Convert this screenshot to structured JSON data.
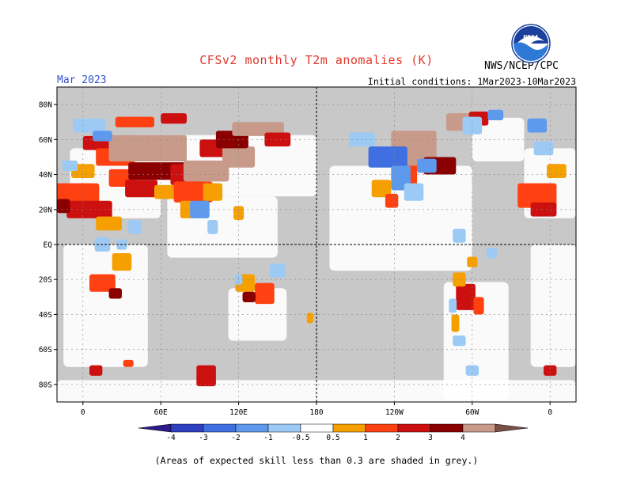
{
  "header": {
    "title": "CFSv2 monthly T2m anomalies (K)",
    "month": "Mar 2023",
    "initial_conditions": "Initial conditions: 1Mar2023-10Mar2023",
    "agency": "NWS/NCEP/CPC",
    "logo_text": "NOAA"
  },
  "footnote": "(Areas of expected skill less than 0.3 are shaded in grey.)",
  "colors": {
    "skill_grey": "#c8c8c8",
    "map_frame": "#000000",
    "title_red": "#e0382c",
    "month_blue": "#3355cc"
  },
  "chart_data": {
    "type": "heatmap",
    "title": "CFSv2 monthly T2m anomalies (K)",
    "projection": "equirectangular",
    "lon_range": [
      -20,
      380
    ],
    "lat_range": [
      -90,
      90
    ],
    "lat_ticks": [
      {
        "value": 80,
        "label": "80N"
      },
      {
        "value": 60,
        "label": "60N"
      },
      {
        "value": 40,
        "label": "40N"
      },
      {
        "value": 20,
        "label": "20N"
      },
      {
        "value": 0,
        "label": "EQ"
      },
      {
        "value": -20,
        "label": "20S"
      },
      {
        "value": -40,
        "label": "40S"
      },
      {
        "value": -60,
        "label": "60S"
      },
      {
        "value": -80,
        "label": "80S"
      }
    ],
    "lon_ticks": [
      {
        "value": 0,
        "label": "0"
      },
      {
        "value": 60,
        "label": "60E"
      },
      {
        "value": 120,
        "label": "120E"
      },
      {
        "value": 180,
        "label": "180"
      },
      {
        "value": 240,
        "label": "120W"
      },
      {
        "value": 300,
        "label": "60W"
      },
      {
        "value": 360,
        "label": "0"
      }
    ],
    "colorbar": {
      "boundaries": [
        -4,
        -3,
        -2,
        -1,
        -0.5,
        0.5,
        1,
        2,
        3,
        4
      ],
      "labels": [
        "-4",
        "-3",
        "-2",
        "-1",
        "-0.5",
        "0.5",
        "1",
        "2",
        "3",
        "4"
      ],
      "colors": [
        "#2a1b8a",
        "#2f3fc0",
        "#3f6fe0",
        "#5d9aee",
        "#9ccaf4",
        "#ffffff",
        "#f5a000",
        "#ff4010",
        "#cc1010",
        "#8a0000",
        "#c89a8a",
        "#7a5048"
      ]
    },
    "grid": "dashed",
    "anomaly_regions": [
      {
        "lon": 10,
        "lat": 58,
        "w": 20,
        "h": 8,
        "level": 3
      },
      {
        "lon": 25,
        "lat": 50,
        "w": 30,
        "h": 10,
        "level": 2
      },
      {
        "lon": 0,
        "lat": 42,
        "w": 18,
        "h": 8,
        "level": 1
      },
      {
        "lon": -10,
        "lat": 28,
        "w": 45,
        "h": 14,
        "level": 2
      },
      {
        "lon": 5,
        "lat": 20,
        "w": 35,
        "h": 10,
        "level": 3
      },
      {
        "lon": -15,
        "lat": 22,
        "w": 10,
        "h": 8,
        "level": 4
      },
      {
        "lon": 20,
        "lat": 12,
        "w": 20,
        "h": 8,
        "level": 1
      },
      {
        "lon": 30,
        "lat": 38,
        "w": 20,
        "h": 10,
        "level": 2
      },
      {
        "lon": 50,
        "lat": 55,
        "w": 60,
        "h": 15,
        "level": 5
      },
      {
        "lon": 60,
        "lat": 42,
        "w": 50,
        "h": 10,
        "level": 4
      },
      {
        "lon": 45,
        "lat": 32,
        "w": 25,
        "h": 10,
        "level": 3
      },
      {
        "lon": 65,
        "lat": 30,
        "w": 20,
        "h": 8,
        "level": 1
      },
      {
        "lon": 80,
        "lat": 40,
        "w": 25,
        "h": 12,
        "level": 3
      },
      {
        "lon": 85,
        "lat": 30,
        "w": 30,
        "h": 12,
        "level": 2
      },
      {
        "lon": 95,
        "lat": 42,
        "w": 35,
        "h": 12,
        "level": 5
      },
      {
        "lon": 105,
        "lat": 55,
        "w": 30,
        "h": 10,
        "level": 3
      },
      {
        "lon": 120,
        "lat": 50,
        "w": 25,
        "h": 12,
        "level": 5
      },
      {
        "lon": 115,
        "lat": 60,
        "w": 25,
        "h": 10,
        "level": 4
      },
      {
        "lon": 135,
        "lat": 66,
        "w": 40,
        "h": 8,
        "level": 5
      },
      {
        "lon": 150,
        "lat": 60,
        "w": 20,
        "h": 8,
        "level": 3
      },
      {
        "lon": 100,
        "lat": 30,
        "w": 15,
        "h": 10,
        "level": 1
      },
      {
        "lon": 80,
        "lat": 20,
        "w": 10,
        "h": 10,
        "level": 1
      },
      {
        "lon": 40,
        "lat": 70,
        "w": 30,
        "h": 6,
        "level": 2
      },
      {
        "lon": 70,
        "lat": 72,
        "w": 20,
        "h": 6,
        "level": 3
      },
      {
        "lon": 120,
        "lat": 18,
        "w": 8,
        "h": 8,
        "level": 1
      },
      {
        "lon": 30,
        "lat": -10,
        "w": 15,
        "h": 10,
        "level": 1
      },
      {
        "lon": 15,
        "lat": -22,
        "w": 20,
        "h": 10,
        "level": 2
      },
      {
        "lon": 25,
        "lat": -28,
        "w": 10,
        "h": 6,
        "level": 4
      },
      {
        "lon": 125,
        "lat": -22,
        "w": 15,
        "h": 10,
        "level": 1
      },
      {
        "lon": 140,
        "lat": -28,
        "w": 15,
        "h": 12,
        "level": 2
      },
      {
        "lon": 128,
        "lat": -30,
        "w": 10,
        "h": 6,
        "level": 4
      },
      {
        "lon": 175,
        "lat": -42,
        "w": 5,
        "h": 6,
        "level": 1
      },
      {
        "lon": 230,
        "lat": 32,
        "w": 15,
        "h": 10,
        "level": 1
      },
      {
        "lon": 238,
        "lat": 25,
        "w": 10,
        "h": 8,
        "level": 2
      },
      {
        "lon": 250,
        "lat": 40,
        "w": 15,
        "h": 12,
        "level": 2
      },
      {
        "lon": 255,
        "lat": 55,
        "w": 35,
        "h": 20,
        "level": 5
      },
      {
        "lon": 275,
        "lat": 45,
        "w": 25,
        "h": 10,
        "level": 4
      },
      {
        "lon": 290,
        "lat": 70,
        "w": 20,
        "h": 10,
        "level": 5
      },
      {
        "lon": 305,
        "lat": 72,
        "w": 15,
        "h": 8,
        "level": 3
      },
      {
        "lon": 295,
        "lat": -30,
        "w": 15,
        "h": 15,
        "level": 3
      },
      {
        "lon": 290,
        "lat": -20,
        "w": 10,
        "h": 8,
        "level": 1
      },
      {
        "lon": 305,
        "lat": -35,
        "w": 8,
        "h": 10,
        "level": 2
      },
      {
        "lon": 287,
        "lat": -45,
        "w": 6,
        "h": 10,
        "level": 1
      },
      {
        "lon": 300,
        "lat": -10,
        "w": 8,
        "h": 6,
        "level": 1
      },
      {
        "lon": 350,
        "lat": 28,
        "w": 30,
        "h": 14,
        "level": 2
      },
      {
        "lon": 355,
        "lat": 20,
        "w": 20,
        "h": 8,
        "level": 3
      },
      {
        "lon": 365,
        "lat": 42,
        "w": 15,
        "h": 8,
        "level": 1
      },
      {
        "lon": 10,
        "lat": -72,
        "w": 10,
        "h": 6,
        "level": 3
      },
      {
        "lon": 95,
        "lat": -75,
        "w": 15,
        "h": 12,
        "level": 3
      },
      {
        "lon": 35,
        "lat": -68,
        "w": 8,
        "h": 4,
        "level": 2
      },
      {
        "lon": 360,
        "lat": -72,
        "w": 10,
        "h": 6,
        "level": 3
      },
      {
        "lon": 5,
        "lat": 68,
        "w": 25,
        "h": 8,
        "level": -1
      },
      {
        "lon": 15,
        "lat": 62,
        "w": 15,
        "h": 6,
        "level": -2
      },
      {
        "lon": -10,
        "lat": 45,
        "w": 12,
        "h": 6,
        "level": -1
      },
      {
        "lon": 90,
        "lat": 20,
        "w": 15,
        "h": 10,
        "level": -2
      },
      {
        "lon": 100,
        "lat": 10,
        "w": 8,
        "h": 8,
        "level": -1
      },
      {
        "lon": 40,
        "lat": 10,
        "w": 10,
        "h": 8,
        "level": -1
      },
      {
        "lon": 15,
        "lat": 0,
        "w": 12,
        "h": 8,
        "level": -1
      },
      {
        "lon": 30,
        "lat": 0,
        "w": 8,
        "h": 6,
        "level": -1
      },
      {
        "lon": 150,
        "lat": -15,
        "w": 12,
        "h": 8,
        "level": -1
      },
      {
        "lon": 120,
        "lat": -20,
        "w": 6,
        "h": 6,
        "level": -1
      },
      {
        "lon": 215,
        "lat": 60,
        "w": 20,
        "h": 8,
        "level": -1
      },
      {
        "lon": 235,
        "lat": 50,
        "w": 30,
        "h": 12,
        "level": -3
      },
      {
        "lon": 245,
        "lat": 38,
        "w": 15,
        "h": 14,
        "level": -2
      },
      {
        "lon": 255,
        "lat": 30,
        "w": 15,
        "h": 10,
        "level": -1
      },
      {
        "lon": 265,
        "lat": 45,
        "w": 15,
        "h": 8,
        "level": -2
      },
      {
        "lon": 300,
        "lat": 68,
        "w": 15,
        "h": 10,
        "level": -1
      },
      {
        "lon": 318,
        "lat": 74,
        "w": 12,
        "h": 6,
        "level": -2
      },
      {
        "lon": 290,
        "lat": 5,
        "w": 10,
        "h": 8,
        "level": -1
      },
      {
        "lon": 315,
        "lat": -5,
        "w": 8,
        "h": 6,
        "level": -1
      },
      {
        "lon": 285,
        "lat": -35,
        "w": 6,
        "h": 8,
        "level": -1
      },
      {
        "lon": 290,
        "lat": -55,
        "w": 10,
        "h": 6,
        "level": -1
      },
      {
        "lon": 300,
        "lat": -72,
        "w": 10,
        "h": 6,
        "level": -1
      },
      {
        "lon": 355,
        "lat": 55,
        "w": 15,
        "h": 8,
        "level": -1
      },
      {
        "lon": 350,
        "lat": 68,
        "w": 15,
        "h": 8,
        "level": -2
      }
    ],
    "land_masks": [
      {
        "lon": -10,
        "lat": 35,
        "w": 70,
        "h": 40
      },
      {
        "lon": 40,
        "lat": 45,
        "w": 140,
        "h": 35
      },
      {
        "lon": 65,
        "lat": 10,
        "w": 85,
        "h": 35
      },
      {
        "lon": -15,
        "lat": -35,
        "w": 65,
        "h": 70
      },
      {
        "lon": 112,
        "lat": -40,
        "w": 45,
        "h": 30
      },
      {
        "lon": 190,
        "lat": 15,
        "w": 110,
        "h": 60
      },
      {
        "lon": 278,
        "lat": -55,
        "w": 50,
        "h": 67
      },
      {
        "lon": 300,
        "lat": 60,
        "w": 40,
        "h": 25
      },
      {
        "lon": 345,
        "lat": -35,
        "w": 35,
        "h": 70
      },
      {
        "lon": 340,
        "lat": 35,
        "w": 40,
        "h": 40
      },
      {
        "lon": -20,
        "lat": -90,
        "w": 400,
        "h": 25
      }
    ]
  }
}
